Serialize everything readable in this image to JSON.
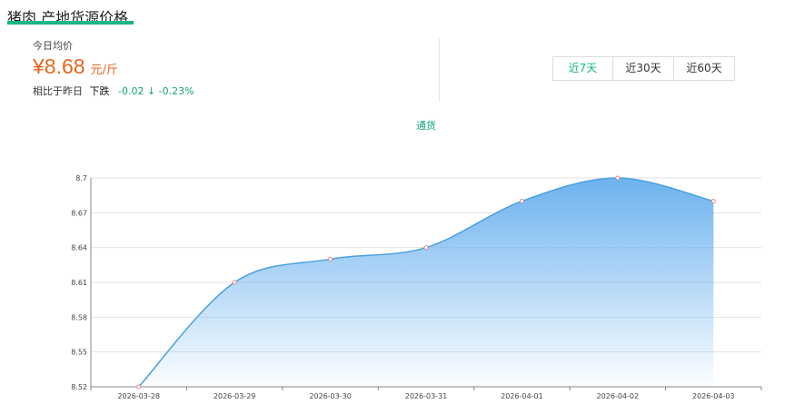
{
  "page": {
    "title": "猪肉 产地货源价格"
  },
  "price_panel": {
    "today_label": "今日均价",
    "currency": "¥",
    "price": "8.68",
    "unit": "元/斤",
    "compare_label": "相比于昨日",
    "trend_word": "下跌",
    "delta": "-0.02 ↓ -0.23%"
  },
  "range_tabs": [
    {
      "label": "近7天",
      "active": true
    },
    {
      "label": "近30天",
      "active": false
    },
    {
      "label": "近60天",
      "active": false
    }
  ],
  "colors": {
    "accent": "#12b886",
    "price": "#e8651a",
    "line": "#4aa0e0",
    "area_top": "#6cb2ef",
    "point": "#e08a8a"
  },
  "chart_data": {
    "type": "area",
    "x": [
      "2026-03-28",
      "2026-03-29",
      "2026-03-30",
      "2026-03-31",
      "2026-04-01",
      "2026-04-02",
      "2026-04-03"
    ],
    "series": [
      {
        "name": "通货",
        "values": [
          8.52,
          8.61,
          8.63,
          8.64,
          8.68,
          8.7,
          8.68
        ]
      }
    ],
    "yticks": [
      "8.52",
      "8.55",
      "8.58",
      "8.61",
      "8.64",
      "8.67",
      "8.7"
    ],
    "ylim": [
      8.52,
      8.7
    ],
    "grid": true,
    "legend_position": "top-center",
    "smooth": true
  }
}
